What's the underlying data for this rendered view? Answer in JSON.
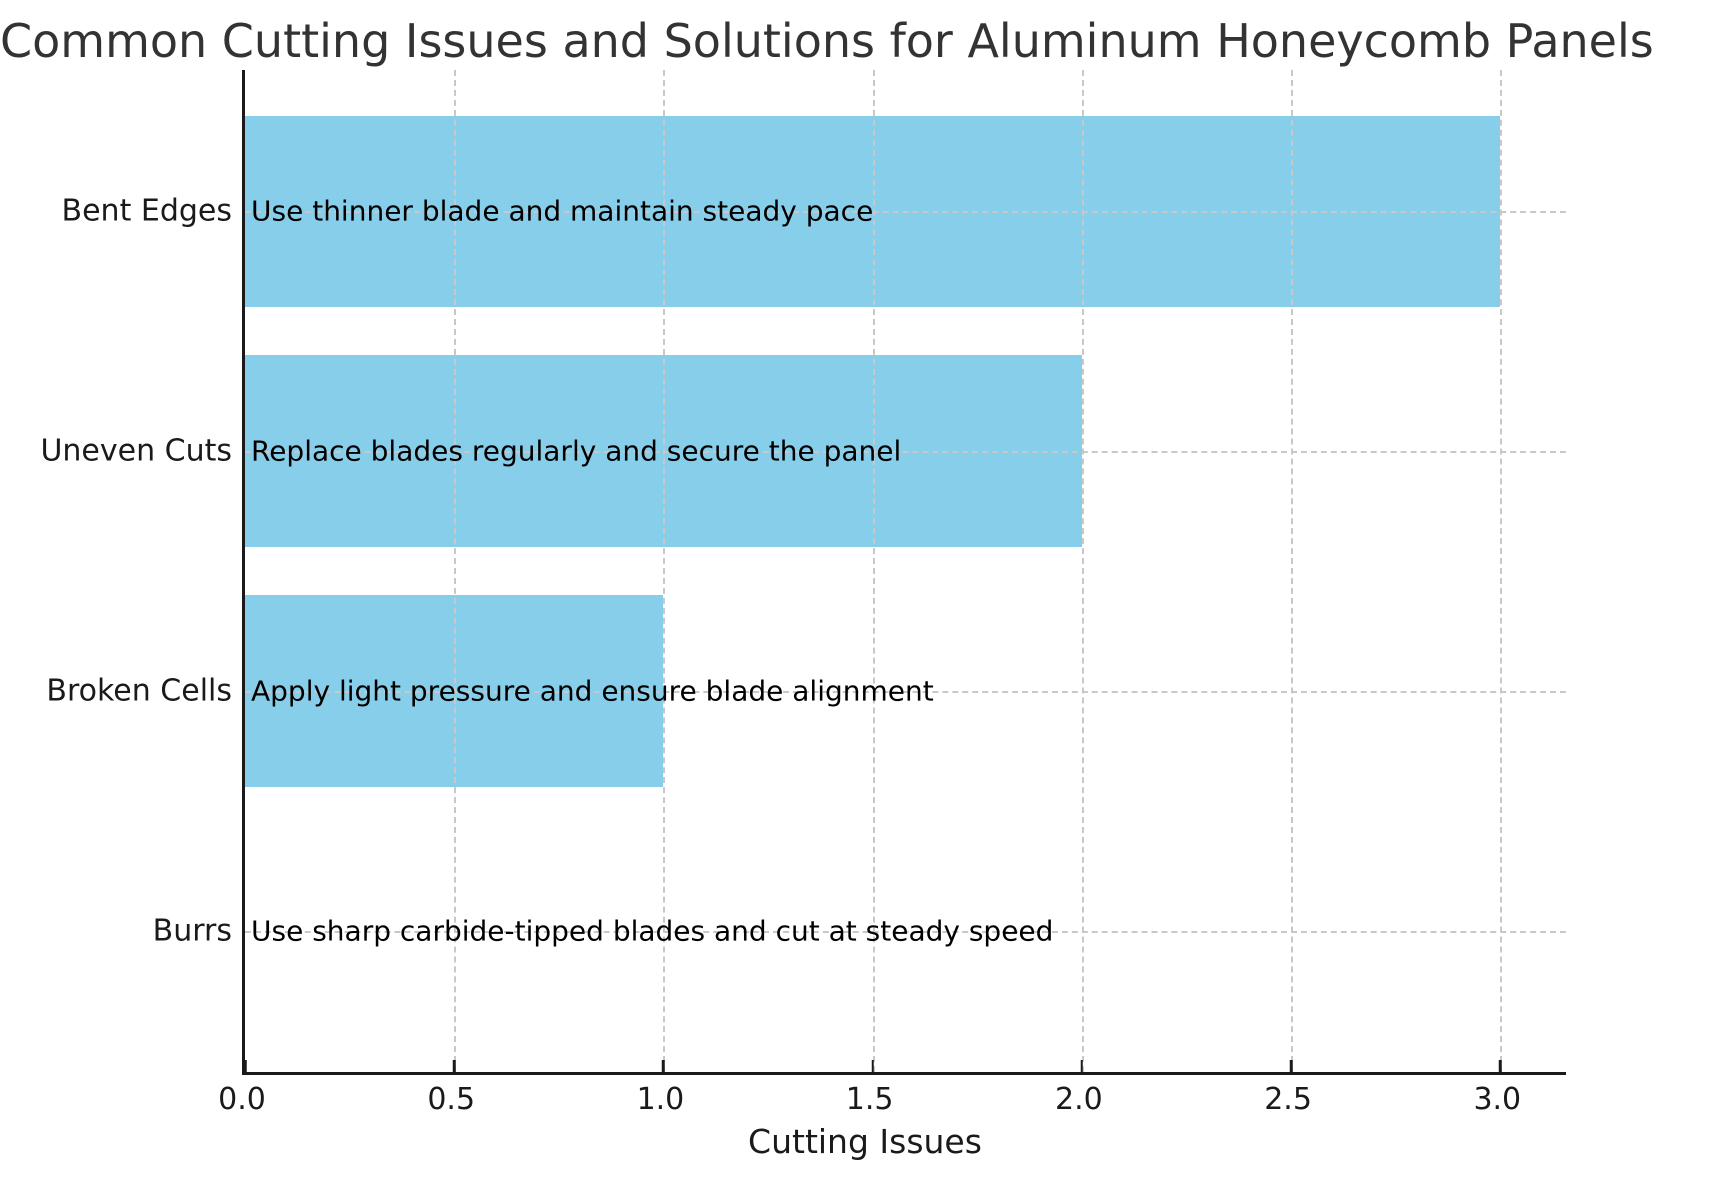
{
  "chart": {
    "title": "Common Cutting Issues and Solutions for Aluminum Honeycomb Panels",
    "xlabel": "Cutting Issues"
  },
  "chart_data": {
    "type": "bar",
    "orientation": "horizontal",
    "title": "Common Cutting Issues and Solutions for Aluminum Honeycomb Panels",
    "xlabel": "Cutting Issues",
    "ylabel": "",
    "categories": [
      "Bent Edges",
      "Uneven Cuts",
      "Broken Cells",
      "Burrs"
    ],
    "values": [
      3,
      2,
      1,
      0
    ],
    "bar_annotations": [
      "Use thinner blade and maintain steady pace",
      "Replace blades regularly and secure the panel",
      "Apply light pressure and ensure blade alignment",
      "Use sharp carbide-tipped blades and cut at steady speed"
    ],
    "x_ticks": [
      0.0,
      0.5,
      1.0,
      1.5,
      2.0,
      2.5,
      3.0
    ],
    "x_tick_labels": [
      "0.0",
      "0.5",
      "1.0",
      "1.5",
      "2.0",
      "2.5",
      "3.0"
    ],
    "xlim": [
      0,
      3.157
    ],
    "ylim": [
      -0.59,
      3.59
    ],
    "bar_height_units": 0.8,
    "grid": true,
    "grid_style": "dashed",
    "grid_on_top": true,
    "legend": null,
    "colors": {
      "bar": "#87CEEB",
      "grid": "#c8c8c8",
      "spine": "#1a1a1a",
      "tick_text": "#1a1a1a",
      "annotation_text": "#000000",
      "title_text": "#333333",
      "background": "#ffffff"
    }
  }
}
